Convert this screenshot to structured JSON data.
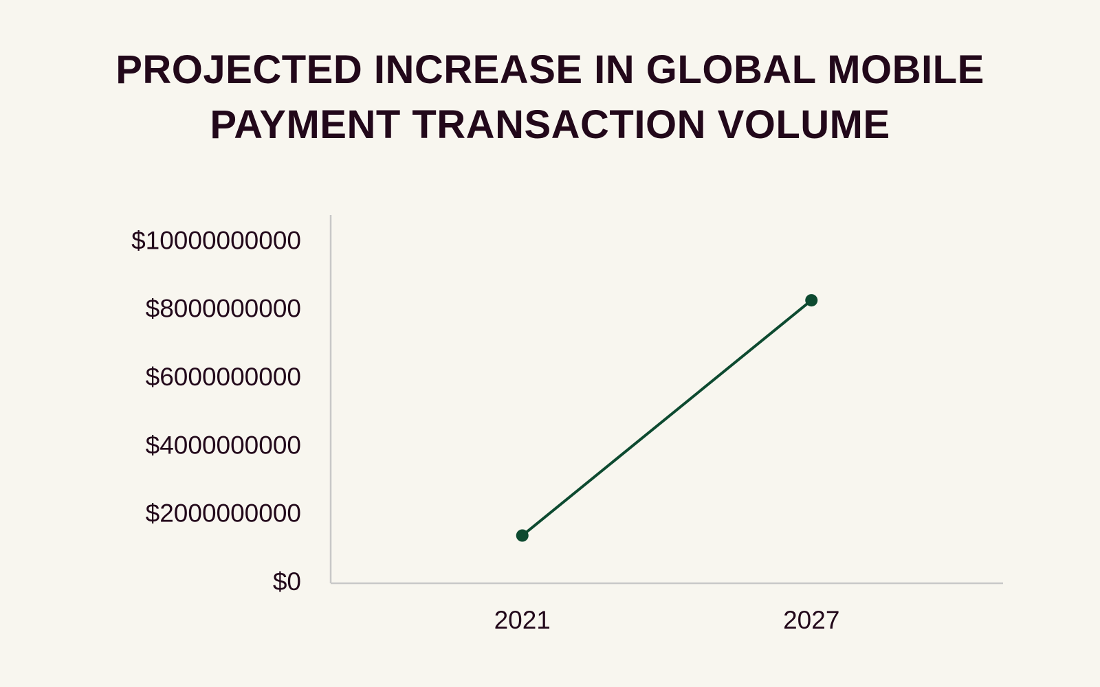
{
  "chart_data": {
    "type": "line",
    "title": "PROJECTED INCREASE IN GLOBAL MOBILE PAYMENT TRANSACTION VOLUME",
    "categories": [
      "2021",
      "2027"
    ],
    "values": [
      1400000000,
      8300000000
    ],
    "color": "#0d4a30",
    "ylim": [
      0,
      10800000000
    ],
    "yticks": [
      {
        "value": 0,
        "label": "$0"
      },
      {
        "value": 2000000000,
        "label": "$2000000000"
      },
      {
        "value": 4000000000,
        "label": "$4000000000"
      },
      {
        "value": 6000000000,
        "label": "$6000000000"
      },
      {
        "value": 8000000000,
        "label": "$8000000000"
      },
      {
        "value": 10000000000,
        "label": "$10000000000"
      }
    ],
    "grid": false
  }
}
